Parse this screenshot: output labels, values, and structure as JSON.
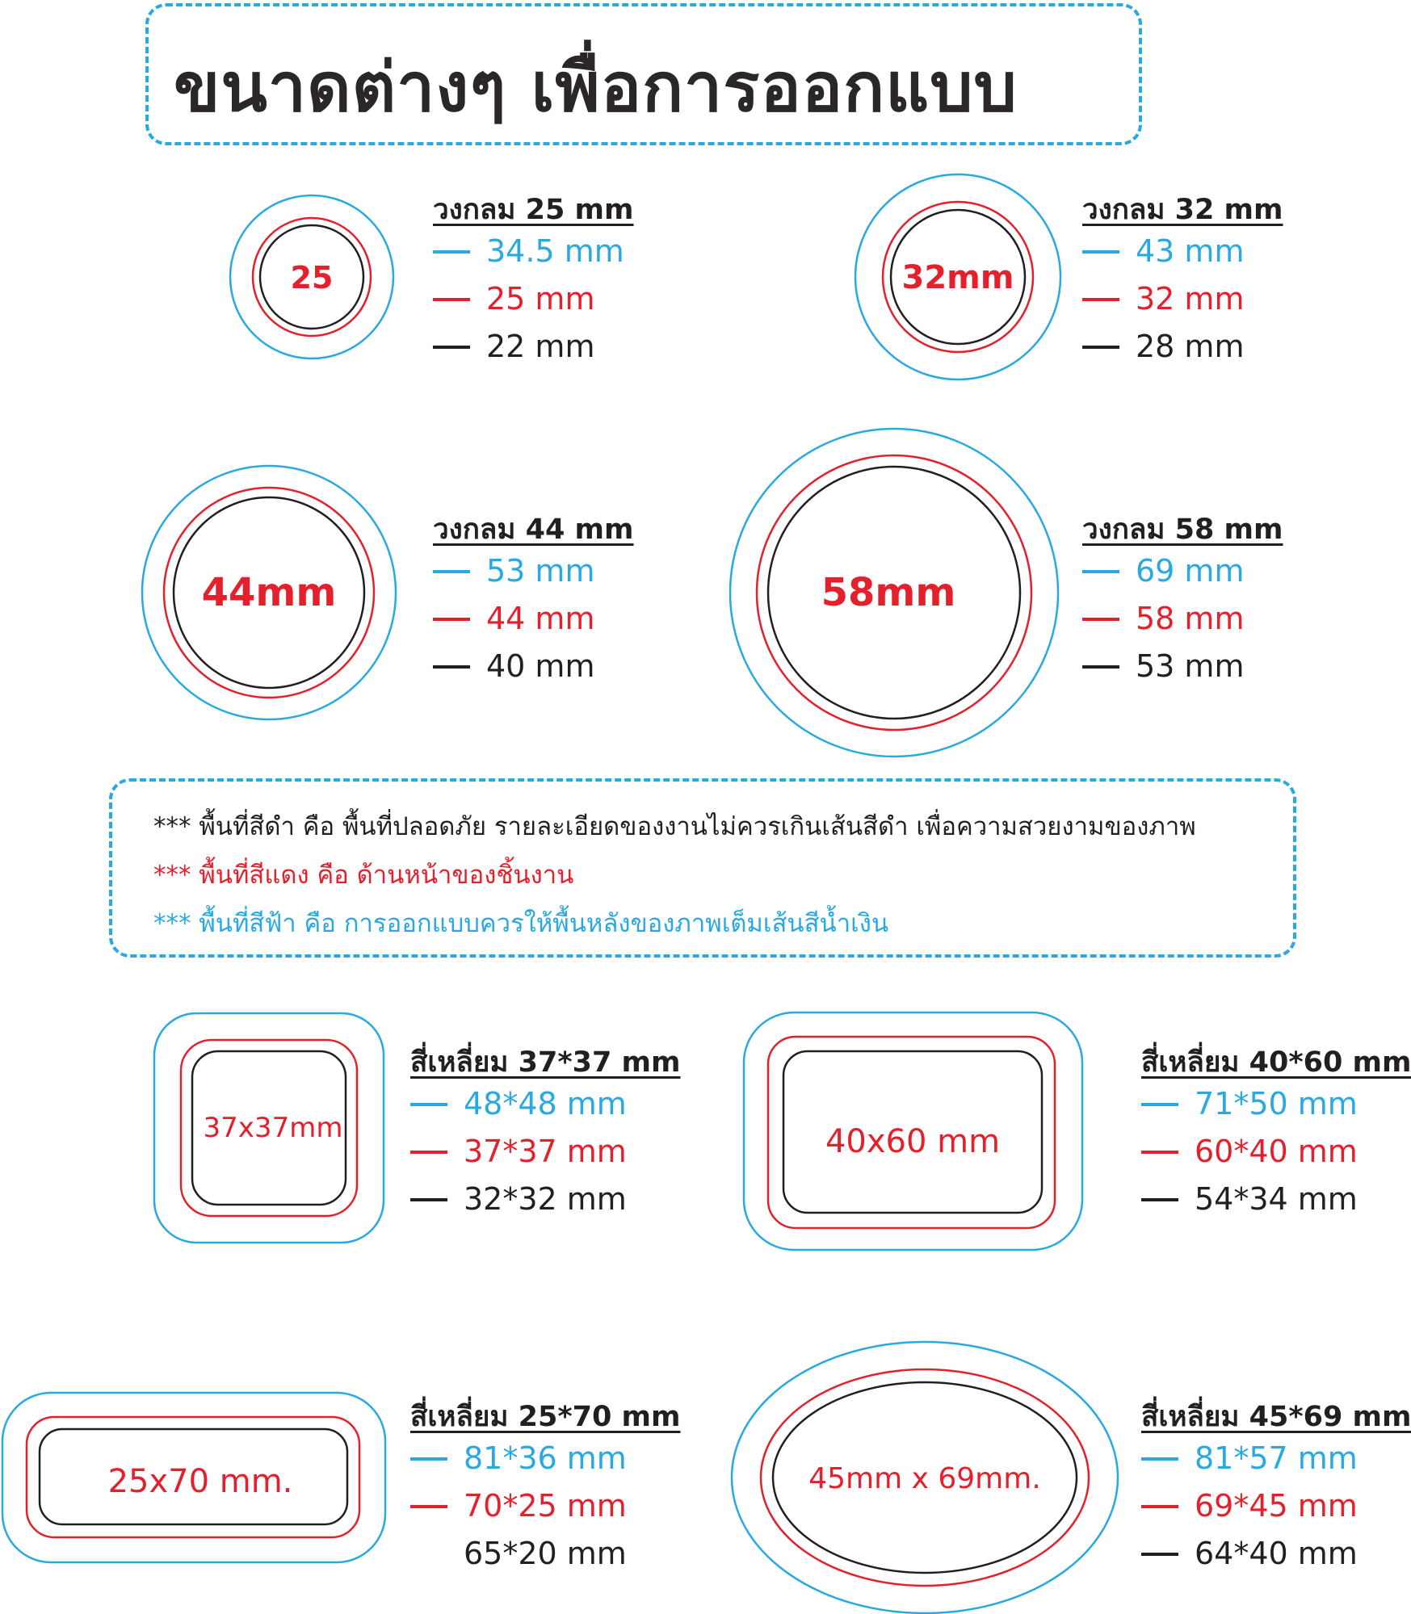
{
  "title": "ขนาดต่างๆ เพื่อการออกแบบ",
  "colors": {
    "blue": "#29a9e0",
    "red": "#e3202c",
    "black": "#231f20"
  },
  "items": [
    {
      "shape": "circle",
      "label": "25",
      "heading": "วงกลม 25 mm",
      "sizes": {
        "blue": "34.5 mm",
        "red": "25 mm",
        "black": "22 mm"
      }
    },
    {
      "shape": "circle",
      "label": "32mm",
      "heading": "วงกลม 32 mm",
      "sizes": {
        "blue": "43 mm",
        "red": "32 mm",
        "black": "28 mm"
      }
    },
    {
      "shape": "circle",
      "label": "44mm",
      "heading": "วงกลม 44 mm",
      "sizes": {
        "blue": "53 mm",
        "red": "44 mm",
        "black": "40 mm"
      }
    },
    {
      "shape": "circle",
      "label": "58mm",
      "heading": "วงกลม 58 mm",
      "sizes": {
        "blue": "69 mm",
        "red": "58 mm",
        "black": "53 mm"
      }
    },
    {
      "shape": "rounded-rectangle",
      "label": "37x37mm",
      "heading": "สี่เหลี่ยม 37*37 mm",
      "sizes": {
        "blue": "48*48 mm",
        "red": "37*37 mm",
        "black": "32*32 mm"
      }
    },
    {
      "shape": "rounded-rectangle",
      "label": "40x60 mm",
      "heading": "สี่เหลี่ยม 40*60 mm",
      "sizes": {
        "blue": "71*50 mm",
        "red": "60*40 mm",
        "black": "54*34 mm"
      }
    },
    {
      "shape": "rounded-rectangle",
      "label": "25x70 mm.",
      "heading": "สี่เหลี่ยม 25*70 mm",
      "sizes": {
        "blue": "81*36 mm",
        "red": "70*25 mm",
        "black": "65*20 mm"
      }
    },
    {
      "shape": "ellipse",
      "label": "45mm x 69mm.",
      "heading": "สี่เหลี่ยม 45*69 mm",
      "sizes": {
        "blue": "81*57 mm",
        "red": "69*45 mm",
        "black": "64*40 mm"
      }
    }
  ],
  "notes": [
    "*** พื้นที่สีดำ คือ พื้นที่ปลอดภัย รายละเอียดของงานไม่ควรเกินเส้นสีดำ เพื่อความสวยงามของภาพ",
    "*** พื้นที่สีแดง คือ ด้านหน้าของชิ้นงาน",
    "*** พื้นที่สีฟ้า คือ การออกแบบควรให้พื้นหลังของภาพเต็มเส้นสีน้ำเงิน"
  ]
}
